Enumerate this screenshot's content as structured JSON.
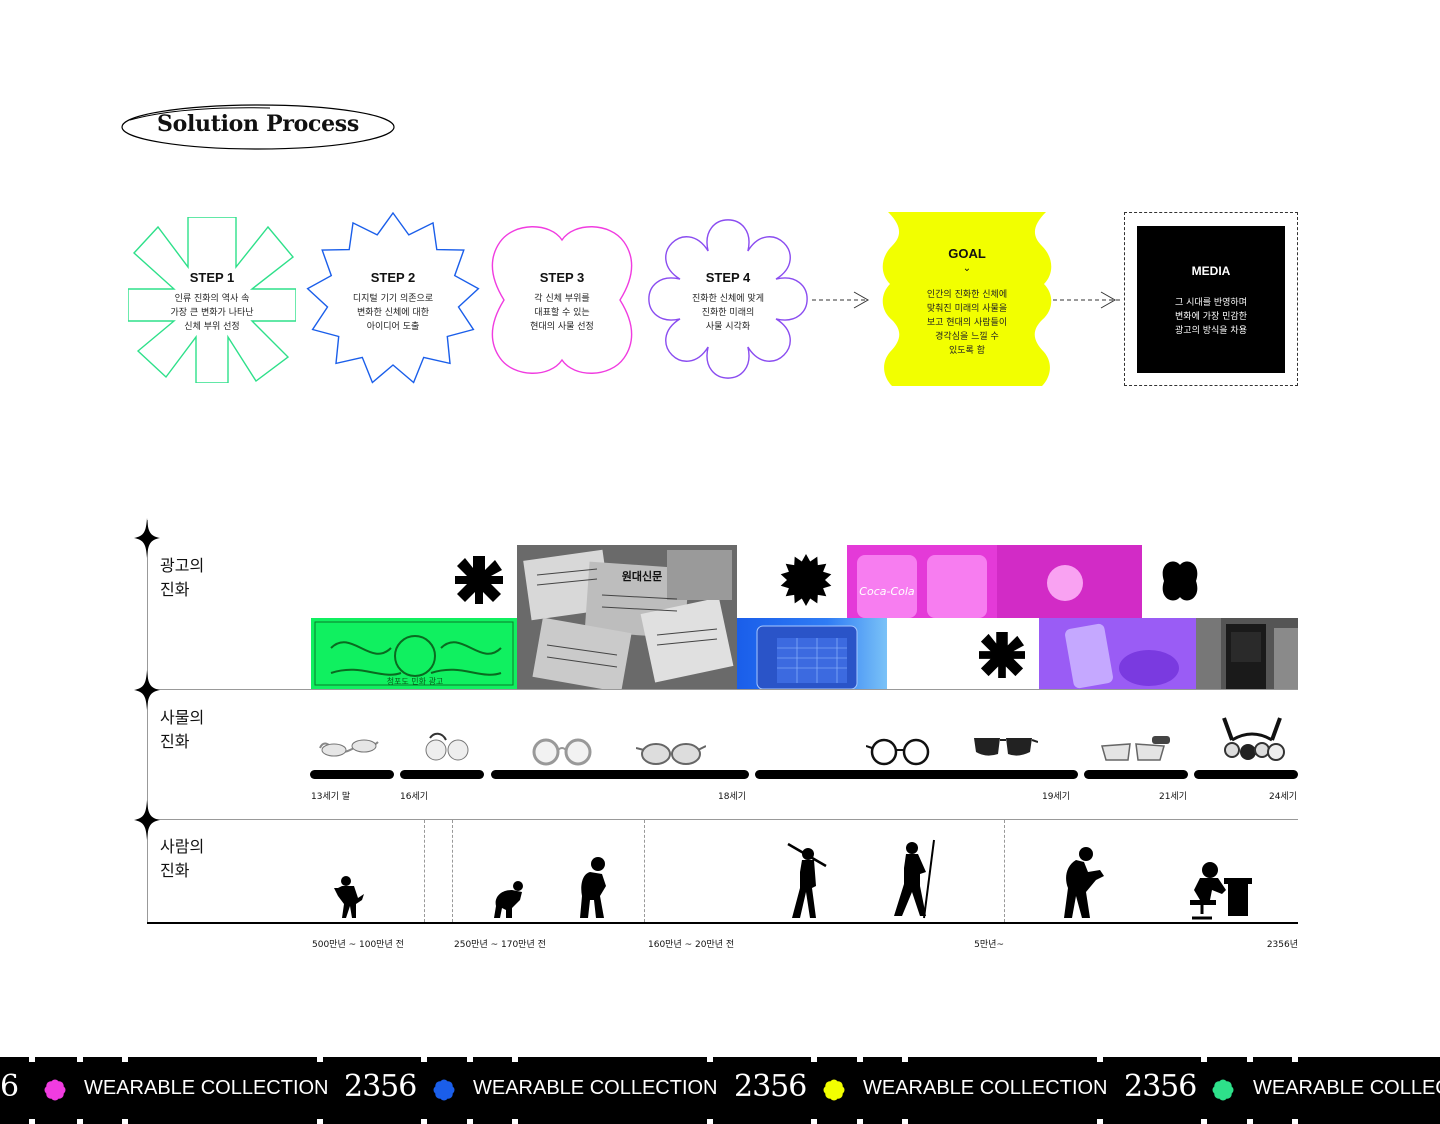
{
  "title": "Solution Process",
  "steps": [
    {
      "title": "STEP 1",
      "desc": "인류 진화의 역사 속\n가장 큰 변화가 나타난\n신체 부위 선정",
      "color": "#2ee08a"
    },
    {
      "title": "STEP 2",
      "desc": "디지털 기기 의존으로\n변화한 신체에 대한\n아이디어 도출",
      "color": "#1a5eea"
    },
    {
      "title": "STEP 3",
      "desc": "각 신체 부위를\n대표할 수 있는\n현대의 사물 선정",
      "color": "#f03ce0"
    },
    {
      "title": "STEP 4",
      "desc": "진화한 신체에 맞게\n진화한 미래의\n사물 시각화",
      "color": "#8a4cf0"
    }
  ],
  "goal": {
    "title": "GOAL",
    "desc": "인간의 진화한 신체에\n맞춰진 미래의 사물을\n보고 현대의 사람들이\n경각심을 느낄 수\n있도록 함",
    "color": "#f2ff00"
  },
  "media": {
    "title": "MEDIA",
    "desc": "그 시대를 반영하며\n변화에 가장 민감한\n광고의 방식을 차용"
  },
  "rows": {
    "ad": "광고의\n진화",
    "object": "사물의\n진화",
    "human": "사람의\n진화"
  },
  "object_eras": [
    "13세기 말",
    "16세기",
    "18세기",
    "19세기",
    "21세기",
    "24세기"
  ],
  "human_eras": [
    "500만년 ~ 100만년 전",
    "250만년 ~ 170만년 전",
    "160만년 ~ 20만년 전",
    "5만년~",
    "2356년"
  ],
  "ad_images": {
    "poster": "청포도 민화 광고",
    "newspaper": "원대신문",
    "coke": "Coca-Cola"
  },
  "band": {
    "label": "WEARABLE COLLECTION",
    "year": "2356",
    "partial_year": "6",
    "partial_label": "WEARABLE COLLECT",
    "flower_colors": [
      "#f03ce0",
      "#1a5eea",
      "#f2ff00",
      "#2ee08a"
    ]
  }
}
